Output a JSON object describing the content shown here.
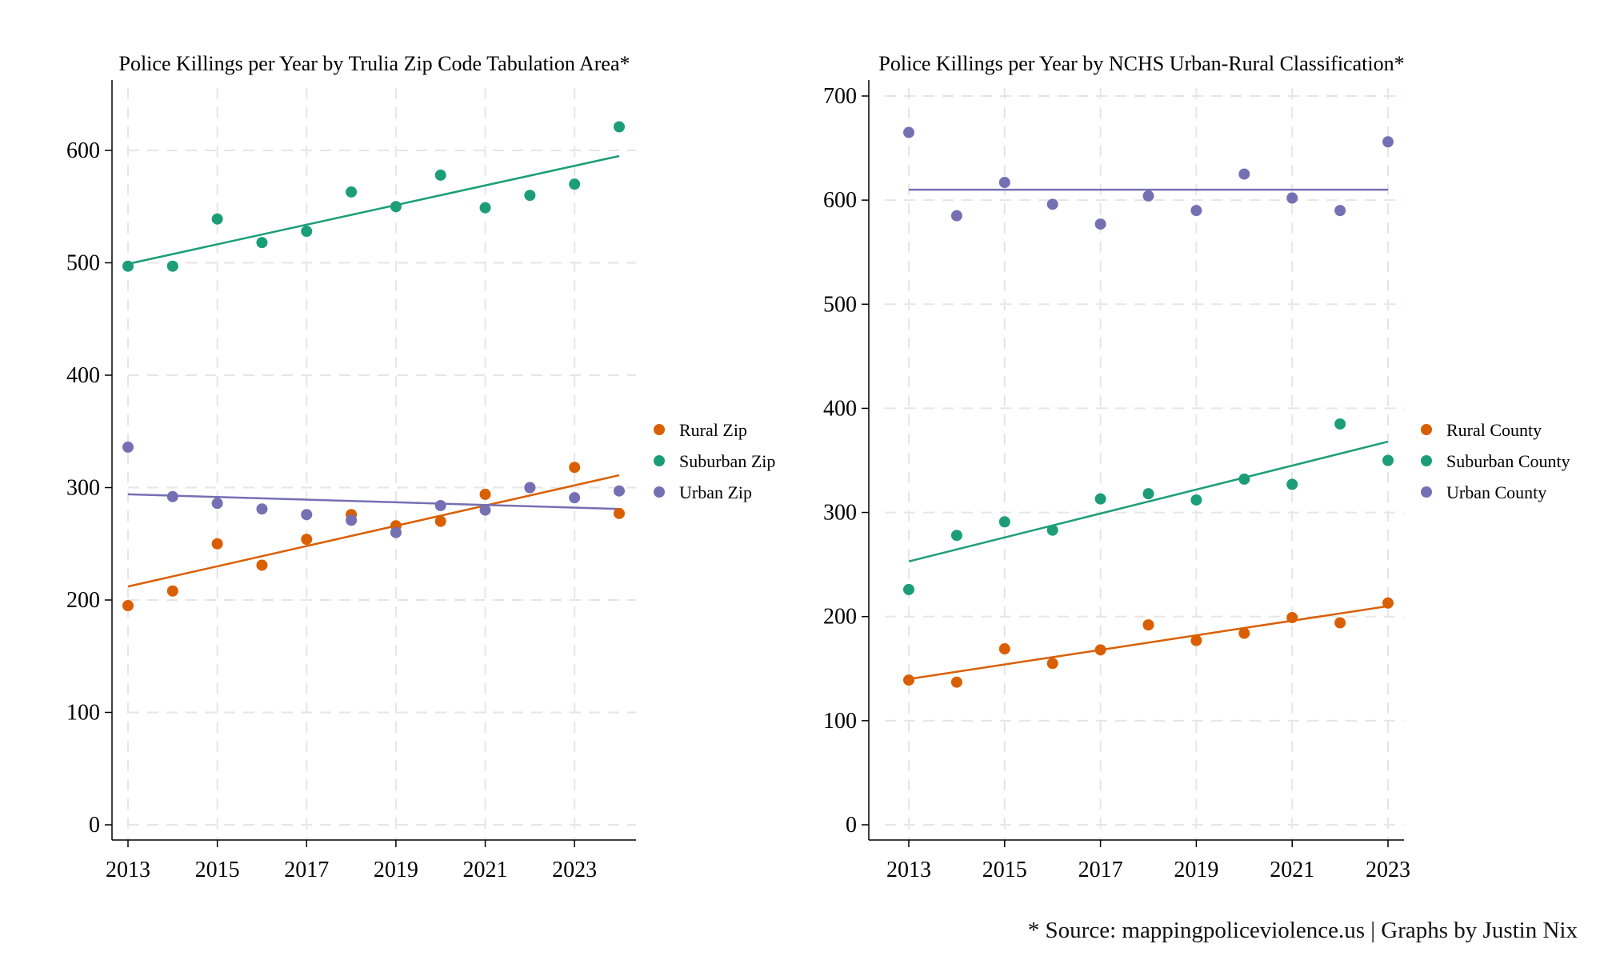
{
  "footnote": "* Source: mappingpoliceviolence.us | Graphs by Justin Nix",
  "colors": {
    "rural": "#D95F02",
    "suburban": "#1B9E77",
    "urban": "#7570B3",
    "grid": "#e6e6e6",
    "axis": "#000000"
  },
  "chart_data": [
    {
      "type": "scatter",
      "title": "Police Killings per Year by Trulia Zip Code Tabulation Area*",
      "xlabel": "",
      "ylabel": "",
      "xlim": [
        2013,
        2024
      ],
      "ylim": [
        0,
        600
      ],
      "xticks": [
        2013,
        2015,
        2017,
        2019,
        2021,
        2023
      ],
      "yticks": [
        0,
        100,
        200,
        300,
        400,
        500,
        600
      ],
      "grid": true,
      "legend_position": "right",
      "x": [
        2013,
        2014,
        2015,
        2016,
        2017,
        2018,
        2019,
        2020,
        2021,
        2022,
        2023,
        2024
      ],
      "series": [
        {
          "name": "Rural Zip",
          "color": "#D95F02",
          "values": [
            195,
            208,
            250,
            231,
            254,
            276,
            266,
            270,
            294,
            300,
            318,
            277
          ],
          "fit_line": [
            212,
            311
          ]
        },
        {
          "name": "Suburban Zip",
          "color": "#1B9E77",
          "values": [
            497,
            497,
            539,
            518,
            528,
            563,
            550,
            578,
            549,
            560,
            570,
            621
          ],
          "fit_line": [
            499,
            595
          ]
        },
        {
          "name": "Urban Zip",
          "color": "#7570B3",
          "values": [
            336,
            292,
            286,
            281,
            276,
            271,
            260,
            284,
            280,
            300,
            291,
            297
          ],
          "fit_line": [
            294,
            281
          ]
        }
      ]
    },
    {
      "type": "scatter",
      "title": "Police Killings per Year by NCHS Urban-Rural Classification*",
      "xlabel": "",
      "ylabel": "",
      "xlim": [
        2013,
        2023
      ],
      "ylim": [
        0,
        700
      ],
      "xticks": [
        2013,
        2015,
        2017,
        2019,
        2021,
        2023
      ],
      "yticks": [
        0,
        100,
        200,
        300,
        400,
        500,
        600,
        700
      ],
      "grid": true,
      "legend_position": "right",
      "x": [
        2013,
        2014,
        2015,
        2016,
        2017,
        2018,
        2019,
        2020,
        2021,
        2022,
        2023
      ],
      "series": [
        {
          "name": "Rural County",
          "color": "#D95F02",
          "values": [
            139,
            137,
            169,
            155,
            168,
            192,
            177,
            184,
            199,
            194,
            213
          ],
          "fit_line": [
            140,
            210
          ]
        },
        {
          "name": "Suburban County",
          "color": "#1B9E77",
          "values": [
            226,
            278,
            291,
            283,
            313,
            318,
            312,
            332,
            327,
            385,
            350
          ],
          "fit_line": [
            253,
            368
          ]
        },
        {
          "name": "Urban County",
          "color": "#7570B3",
          "values": [
            665,
            585,
            617,
            596,
            577,
            604,
            590,
            625,
            602,
            590,
            656
          ],
          "fit_line": [
            610,
            610
          ]
        }
      ]
    }
  ]
}
